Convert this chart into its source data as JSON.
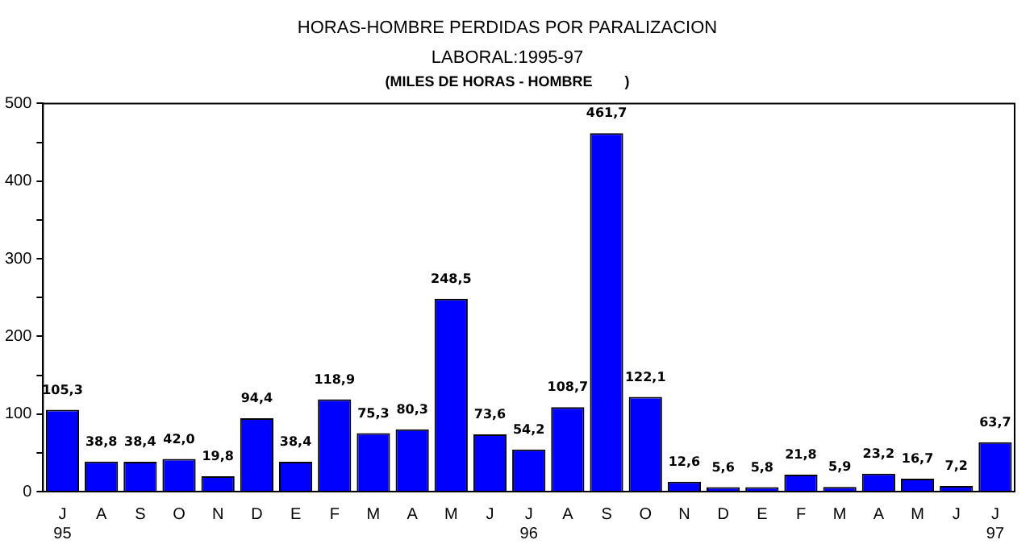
{
  "chart_data": {
    "type": "bar",
    "title": "HORAS-HOMBRE PERDIDAS POR PARALIZACION\nLABORAL:1995-97",
    "subtitle": "(MILES DE HORAS - HOMBRE        )",
    "categories": [
      "J\n95",
      "A",
      "S",
      "O",
      "N",
      "D",
      "E",
      "F",
      "M",
      "A",
      "M",
      "J",
      "J\n96",
      "A",
      "S",
      "O",
      "N",
      "D",
      "E",
      "F",
      "M",
      "A",
      "M",
      "J",
      "J\n97"
    ],
    "values": [
      105.3,
      38.8,
      38.4,
      42.0,
      19.8,
      94.4,
      38.4,
      118.9,
      75.3,
      80.3,
      248.5,
      73.6,
      54.2,
      108.7,
      461.7,
      122.1,
      12.6,
      5.6,
      5.8,
      21.8,
      5.9,
      23.2,
      16.7,
      7.2,
      63.7
    ],
    "value_labels": [
      "105,3",
      "38,8",
      "38,4",
      "42,0",
      "19,8",
      "94,4",
      "38,4",
      "118,9",
      "75,3",
      "80,3",
      "248,5",
      "73,6",
      "54,2",
      "108,7",
      "461,7",
      "122,1",
      "12,6",
      "5,6",
      "5,8",
      "21,8",
      "5,9",
      "23,2",
      "16,7",
      "7,2",
      "63,7"
    ],
    "color": "#0000ff",
    "ylim": [
      0,
      500
    ],
    "yticks": [
      0,
      {
        "value": 50,
        "label": null
      },
      100,
      {
        "value": 150,
        "label": null
      },
      200,
      {
        "value": 250,
        "label": null
      },
      300,
      {
        "value": 350,
        "label": null
      },
      400,
      {
        "value": 450,
        "label": null
      },
      500
    ],
    "grid": false,
    "legend": false
  }
}
